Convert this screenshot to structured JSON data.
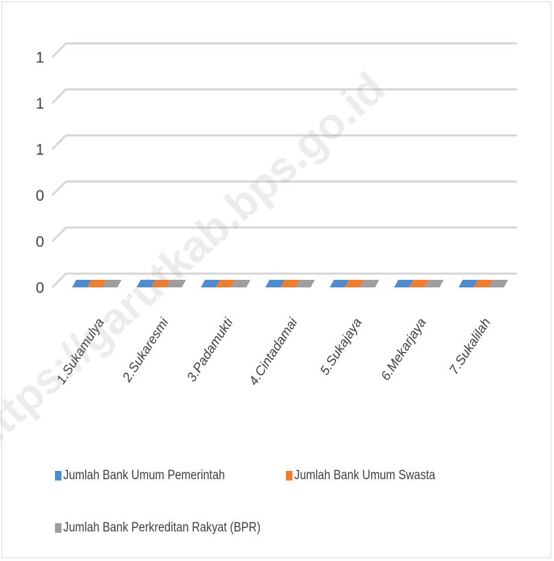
{
  "chart_data": {
    "type": "bar",
    "title": "",
    "xlabel": "",
    "ylabel": "",
    "categories": [
      "1.Sukamulya",
      "2.Sukaresmi",
      "3.Padamukti",
      "4.Cintadamai",
      "5.Sukajaya",
      "6.Mekarjaya",
      "7.Sukalilah"
    ],
    "y_tick_labels": [
      "0",
      "0",
      "0",
      "1",
      "1",
      "1"
    ],
    "ylim": [
      0,
      1
    ],
    "grid": true,
    "style": "3d",
    "legend_position": "bottom",
    "series": [
      {
        "name": "Jumlah Bank Umum Pemerintah",
        "values": [
          0,
          0,
          0,
          0,
          0,
          0,
          0
        ],
        "color": "#4e8ccf"
      },
      {
        "name": "Jumlah Bank Umum Swasta",
        "values": [
          0,
          0,
          0,
          0,
          0,
          0,
          0
        ],
        "color": "#ed7d31"
      },
      {
        "name": "Jumlah Bank Perkreditan Rakyat (BPR)",
        "values": [
          0,
          0,
          0,
          0,
          0,
          0,
          0
        ],
        "color": "#9e9e9e"
      }
    ]
  },
  "watermark": {
    "text": "https://garutkab.bps.go.id"
  }
}
